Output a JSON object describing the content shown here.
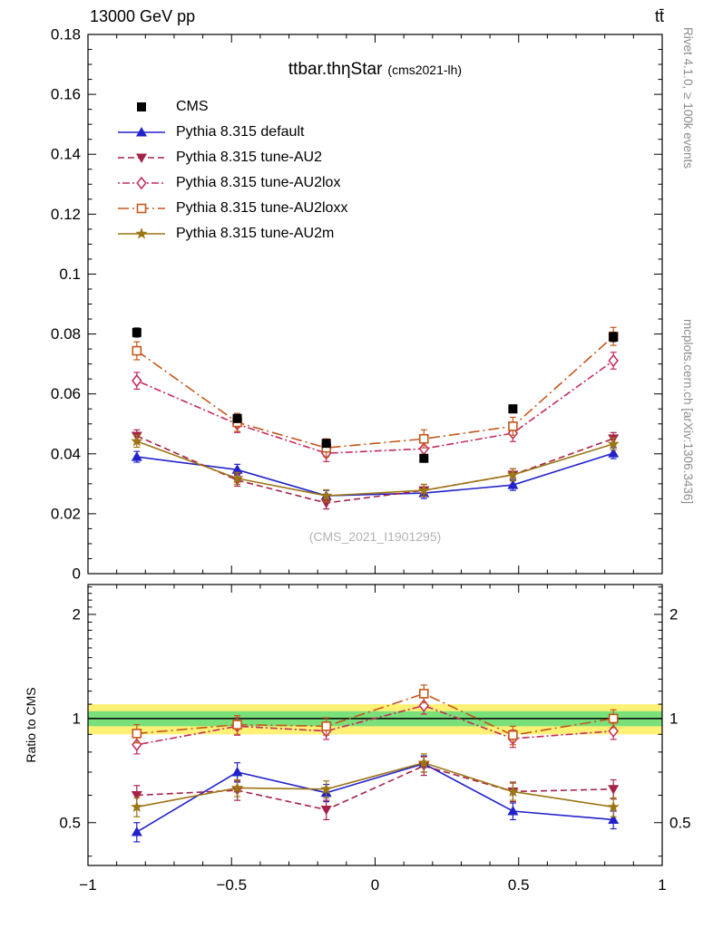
{
  "header": {
    "left": "13000 GeV pp",
    "right": "tt̄"
  },
  "side_right": {
    "top": "Rivet 4.1.0, ≥ 100k events",
    "bottom": "mcplots.cern.ch [arXiv:1306.3436]"
  },
  "chart_data": {
    "type": "line",
    "title_main": "ttbar.thηStar",
    "title_sub": "(cms2021-lh)",
    "watermark": "(CMS_2021_I1901295)",
    "ratio_ylabel": "Ratio to CMS",
    "x": [
      -0.83,
      -0.48,
      -0.17,
      0.17,
      0.48,
      0.83
    ],
    "xlim": [
      -1,
      1
    ],
    "x_axis": {
      "major": [
        -1,
        -0.5,
        0,
        0.5,
        1
      ],
      "labels": [
        "−1",
        "−0.5",
        "0",
        "0.5",
        "1"
      ],
      "minor_step": 0.1
    },
    "main_axis": {
      "ylim": [
        0,
        0.18
      ],
      "major_step": 0.02,
      "minor_step": 0.005
    },
    "ratio_axis": {
      "scale": "log",
      "ylim": [
        0.376,
        2.44
      ],
      "major": [
        0.5,
        1,
        2
      ],
      "labels": [
        "0.5",
        "1",
        "2"
      ],
      "minor": [
        0.4,
        0.6,
        0.7,
        0.8,
        0.9,
        1.1,
        1.2,
        1.3,
        1.4,
        1.5,
        1.6,
        1.7,
        1.8,
        1.9,
        2.1,
        2.2,
        2.3,
        2.4
      ]
    },
    "bands": {
      "yellow": [
        0.9,
        1.1
      ],
      "yellow_color": "#fff176",
      "green": [
        0.95,
        1.05
      ],
      "green_color": "#7ae07a"
    },
    "series": [
      {
        "name": "CMS",
        "color": "#000000",
        "marker": "square",
        "linestyle": "none",
        "values": [
          0.0805,
          0.0518,
          0.0435,
          0.0385,
          0.055,
          0.079
        ],
        "errors": [
          0.0015,
          0.0013,
          0.0012,
          0.0012,
          0.0013,
          0.0015
        ]
      },
      {
        "name": "Pythia 8.315 default",
        "color": "#2222cc",
        "marker": "triangle-up",
        "linestyle": "solid",
        "values": [
          0.039,
          0.0347,
          0.026,
          0.0269,
          0.0296,
          0.0402
        ],
        "errors": [
          0.0018,
          0.0018,
          0.0018,
          0.0018,
          0.0018,
          0.0018
        ],
        "ratio": [
          0.47,
          0.7,
          0.61,
          0.74,
          0.54,
          0.51
        ],
        "ratio_errors": [
          0.03,
          0.045,
          0.035,
          0.04,
          0.03,
          0.03
        ]
      },
      {
        "name": "Pythia 8.315 tune-AU2",
        "color": "#a62348",
        "marker": "triangle-down",
        "linestyle": "dashed",
        "dash": "7 4",
        "values": [
          0.046,
          0.0312,
          0.0236,
          0.0278,
          0.033,
          0.0451
        ],
        "errors": [
          0.002,
          0.002,
          0.002,
          0.002,
          0.002,
          0.002
        ],
        "ratio": [
          0.6,
          0.62,
          0.545,
          0.73,
          0.615,
          0.625
        ],
        "ratio_errors": [
          0.04,
          0.04,
          0.035,
          0.045,
          0.04,
          0.04
        ]
      },
      {
        "name": "Pythia 8.315 tune-AU2lox",
        "color": "#c42a5a",
        "marker": "diamond-open",
        "linestyle": "dashdot",
        "dash": "2 3 8 3",
        "values": [
          0.0644,
          0.0499,
          0.0402,
          0.0417,
          0.0469,
          0.0711
        ],
        "errors": [
          0.0028,
          0.0028,
          0.0028,
          0.0028,
          0.0028,
          0.0028
        ],
        "ratio": [
          0.84,
          0.95,
          0.92,
          1.09,
          0.875,
          0.92
        ],
        "ratio_errors": [
          0.05,
          0.055,
          0.05,
          0.06,
          0.05,
          0.05
        ]
      },
      {
        "name": "Pythia 8.315 tune-AU2loxx",
        "color": "#c4571a",
        "marker": "square-open",
        "linestyle": "dashdot",
        "dash": "12 4 2 4",
        "values": [
          0.0744,
          0.0505,
          0.042,
          0.045,
          0.0492,
          0.0792
        ],
        "errors": [
          0.003,
          0.003,
          0.003,
          0.003,
          0.003,
          0.003
        ],
        "ratio": [
          0.905,
          0.96,
          0.95,
          1.18,
          0.895,
          1.0
        ],
        "ratio_errors": [
          0.055,
          0.06,
          0.055,
          0.07,
          0.055,
          0.06
        ]
      },
      {
        "name": "Pythia 8.315 tune-AU2m",
        "color": "#9c7514",
        "marker": "star",
        "linestyle": "solid",
        "values": [
          0.0442,
          0.0318,
          0.026,
          0.0278,
          0.033,
          0.0433
        ],
        "errors": [
          0.002,
          0.002,
          0.002,
          0.002,
          0.002,
          0.002
        ],
        "ratio": [
          0.555,
          0.63,
          0.625,
          0.745,
          0.615,
          0.555
        ],
        "ratio_errors": [
          0.035,
          0.035,
          0.035,
          0.045,
          0.035,
          0.035
        ]
      }
    ]
  }
}
